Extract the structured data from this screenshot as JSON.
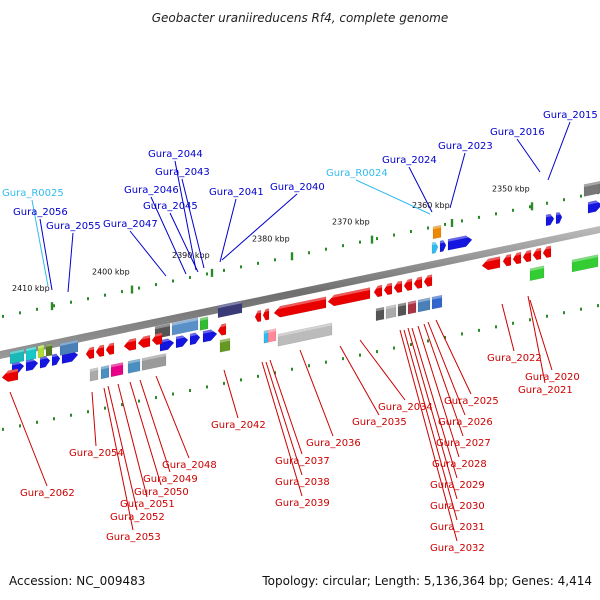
{
  "title": "Geobacter uraniireducens Rf4, complete genome",
  "footer": {
    "accession": "Accession: NC_009483",
    "topology": "Topology: circular; Length: 5,136,364 bp; Genes: 4,414"
  },
  "colors": {
    "forward_label": "#0000cc",
    "reverse_label": "#cc0000",
    "rna_label": "#33bbee",
    "backbone": "#777777",
    "tick": "#2a8a2a"
  },
  "scale_ticks": [
    {
      "label": "2410 kbp"
    },
    {
      "label": "2400 kbp"
    },
    {
      "label": "2390 kbp"
    },
    {
      "label": "2380 kbp"
    },
    {
      "label": "2370 kbp"
    },
    {
      "label": "2360 kbp"
    },
    {
      "label": "2350 kbp"
    }
  ],
  "top_labels": [
    {
      "text": "Gura_2015",
      "kind": "forward"
    },
    {
      "text": "Gura_2016",
      "kind": "forward"
    },
    {
      "text": "Gura_2023",
      "kind": "forward"
    },
    {
      "text": "Gura_2024",
      "kind": "forward"
    },
    {
      "text": "Gura_R0024",
      "kind": "rna"
    },
    {
      "text": "Gura_2040",
      "kind": "forward"
    },
    {
      "text": "Gura_2041",
      "kind": "forward"
    },
    {
      "text": "Gura_2043",
      "kind": "forward"
    },
    {
      "text": "Gura_2044",
      "kind": "forward"
    },
    {
      "text": "Gura_2045",
      "kind": "forward"
    },
    {
      "text": "Gura_2046",
      "kind": "forward"
    },
    {
      "text": "Gura_2047",
      "kind": "forward"
    },
    {
      "text": "Gura_R0025",
      "kind": "rna"
    },
    {
      "text": "Gura_2056",
      "kind": "forward"
    },
    {
      "text": "Gura_2055",
      "kind": "forward"
    }
  ],
  "bottom_labels": [
    {
      "text": "Gura_2022"
    },
    {
      "text": "Gura_2020"
    },
    {
      "text": "Gura_2021"
    },
    {
      "text": "Gura_2025"
    },
    {
      "text": "Gura_2034"
    },
    {
      "text": "Gura_2026"
    },
    {
      "text": "Gura_2035"
    },
    {
      "text": "Gura_2027"
    },
    {
      "text": "Gura_2028"
    },
    {
      "text": "Gura_2029"
    },
    {
      "text": "Gura_2030"
    },
    {
      "text": "Gura_2031"
    },
    {
      "text": "Gura_2032"
    },
    {
      "text": "Gura_2036"
    },
    {
      "text": "Gura_2037"
    },
    {
      "text": "Gura_2038"
    },
    {
      "text": "Gura_2039"
    },
    {
      "text": "Gura_2042"
    },
    {
      "text": "Gura_2048"
    },
    {
      "text": "Gura_2049"
    },
    {
      "text": "Gura_2050"
    },
    {
      "text": "Gura_2051"
    },
    {
      "text": "Gura_2052"
    },
    {
      "text": "Gura_2053"
    },
    {
      "text": "Gura_2054"
    },
    {
      "text": "Gura_2062"
    }
  ]
}
